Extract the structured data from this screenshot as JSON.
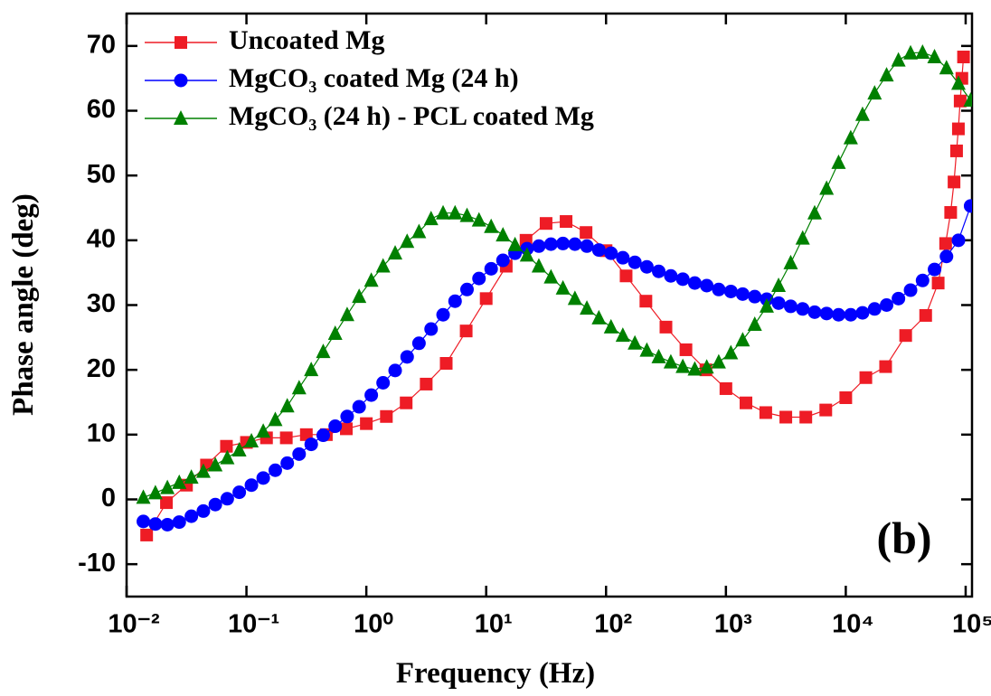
{
  "chart_data": {
    "type": "line",
    "xlabel": "Frequency (Hz)",
    "ylabel": "Phase angle (deg)",
    "annotation": "(b)",
    "xscale": "log",
    "xlim": [
      0.01,
      113000
    ],
    "ylim": [
      -15,
      75
    ],
    "xticks": [
      {
        "value": 0.01,
        "label": "10⁻²"
      },
      {
        "value": 0.1,
        "label": "10⁻¹"
      },
      {
        "value": 1,
        "label": "10⁰"
      },
      {
        "value": 10,
        "label": "10¹"
      },
      {
        "value": 100,
        "label": "10²"
      },
      {
        "value": 1000,
        "label": "10³"
      },
      {
        "value": 10000,
        "label": "10⁴"
      },
      {
        "value": 100000,
        "label": "10⁵"
      }
    ],
    "yticks": [
      -10,
      0,
      10,
      20,
      30,
      40,
      50,
      60,
      70
    ],
    "legend": "upper left",
    "series": [
      {
        "name": "Uncoated Mg",
        "color": "#ee1c25",
        "marker": "square",
        "x": [
          0.0147,
          0.0215,
          0.0316,
          0.0464,
          0.0681,
          0.1,
          0.147,
          0.215,
          0.316,
          0.464,
          0.681,
          1,
          1.47,
          2.15,
          3.16,
          4.64,
          6.81,
          10,
          14.7,
          21.5,
          31.6,
          46.4,
          68.1,
          100,
          147,
          215,
          316,
          464,
          681,
          1000,
          1470,
          2150,
          3160,
          4640,
          6810,
          10000,
          14700,
          21500,
          31600,
          46400,
          59000,
          68100,
          75000,
          80000,
          84000,
          87000,
          90000,
          93000,
          96000
        ],
        "values": [
          -5.5,
          -0.5,
          2.2,
          5.3,
          8.2,
          8.8,
          9.5,
          9.5,
          10,
          10,
          10.9,
          11.7,
          12.8,
          14.9,
          17.8,
          21,
          26,
          31,
          36,
          40,
          42.6,
          42.9,
          41.2,
          38.4,
          34.5,
          30.6,
          26.6,
          23.1,
          20,
          17.1,
          14.9,
          13.4,
          12.7,
          12.7,
          13.8,
          15.7,
          18.8,
          20.5,
          25.3,
          28.4,
          33.4,
          39.5,
          44.3,
          49,
          53.8,
          57.2,
          61.5,
          65,
          68.3
        ]
      },
      {
        "name": "MgCO₃ coated Mg (24 h)",
        "color": "#0000ff",
        "marker": "circle",
        "x": [
          0.0138,
          0.0174,
          0.0219,
          0.0275,
          0.0347,
          0.0437,
          0.055,
          0.0692,
          0.0871,
          0.11,
          0.138,
          0.174,
          0.219,
          0.275,
          0.347,
          0.437,
          0.55,
          0.692,
          0.871,
          1.1,
          1.38,
          1.74,
          2.19,
          2.75,
          3.47,
          4.37,
          5.5,
          6.92,
          8.71,
          11,
          13.8,
          17.4,
          21.9,
          27.5,
          34.7,
          43.7,
          55,
          69.2,
          87.1,
          110,
          138,
          174,
          219,
          275,
          347,
          437,
          550,
          692,
          871,
          1100,
          1380,
          1740,
          2190,
          2750,
          3470,
          4370,
          5500,
          6920,
          8710,
          11000,
          13800,
          17400,
          21900,
          27500,
          34700,
          43700,
          55000,
          69200,
          87100,
          110000
        ],
        "values": [
          -3.4,
          -3.8,
          -3.9,
          -3.5,
          -2.6,
          -1.8,
          -0.8,
          0.1,
          1.1,
          2.2,
          3.3,
          4.5,
          5.6,
          7,
          8.5,
          9.9,
          11.3,
          12.8,
          14.3,
          16.1,
          18,
          19.9,
          22,
          24.1,
          26.3,
          28.5,
          30.6,
          32.4,
          34.1,
          35.6,
          36.9,
          38,
          38.7,
          39.1,
          39.4,
          39.5,
          39.4,
          39.1,
          38.5,
          38,
          37.3,
          36.6,
          35.9,
          35.2,
          34.5,
          34,
          33.4,
          33,
          32.4,
          32.1,
          31.7,
          31.3,
          30.9,
          30.3,
          29.8,
          29.4,
          28.9,
          28.7,
          28.5,
          28.5,
          28.8,
          29.4,
          30,
          31,
          32.3,
          33.8,
          35.5,
          37.5,
          40,
          45.3
        ]
      },
      {
        "name": "MgCO₃ (24 h) - PCL coated Mg",
        "color": "#008000",
        "marker": "triangle",
        "x": [
          0.0138,
          0.0174,
          0.0219,
          0.0275,
          0.0347,
          0.0437,
          0.055,
          0.0692,
          0.0871,
          0.11,
          0.138,
          0.174,
          0.219,
          0.275,
          0.347,
          0.437,
          0.55,
          0.692,
          0.871,
          1.1,
          1.38,
          1.74,
          2.19,
          2.75,
          3.47,
          4.37,
          5.5,
          6.92,
          8.71,
          11,
          13.8,
          17.4,
          21.9,
          27.5,
          34.7,
          43.7,
          55,
          69.2,
          87.1,
          110,
          138,
          174,
          219,
          275,
          347,
          437,
          550,
          692,
          871,
          1100,
          1380,
          1740,
          2190,
          2750,
          3470,
          4370,
          5500,
          6920,
          8710,
          11000,
          13800,
          17400,
          21900,
          27500,
          34700,
          43700,
          55000,
          69200,
          87100,
          110000
        ],
        "values": [
          0.3,
          1.0,
          1.8,
          2.6,
          3.4,
          4.3,
          5.3,
          6.4,
          7.6,
          9.0,
          10.5,
          12.3,
          14.4,
          17.2,
          20,
          22.8,
          25.6,
          28.5,
          31.3,
          33.8,
          36,
          38,
          39.8,
          41.3,
          43.3,
          44.2,
          44.2,
          43.8,
          43.1,
          42.1,
          40.8,
          39.3,
          37.7,
          36,
          34.3,
          32.6,
          31,
          29.5,
          28,
          26.6,
          25.3,
          24.1,
          23,
          22,
          21.2,
          20.5,
          20.1,
          20.4,
          21.2,
          22.6,
          24.6,
          27,
          29.8,
          33,
          36.5,
          40.3,
          44.2,
          48,
          52,
          55.8,
          59.4,
          62.7,
          65.5,
          67.8,
          68.9,
          69,
          68.3,
          66.6,
          64.2,
          61.6
        ]
      }
    ]
  }
}
